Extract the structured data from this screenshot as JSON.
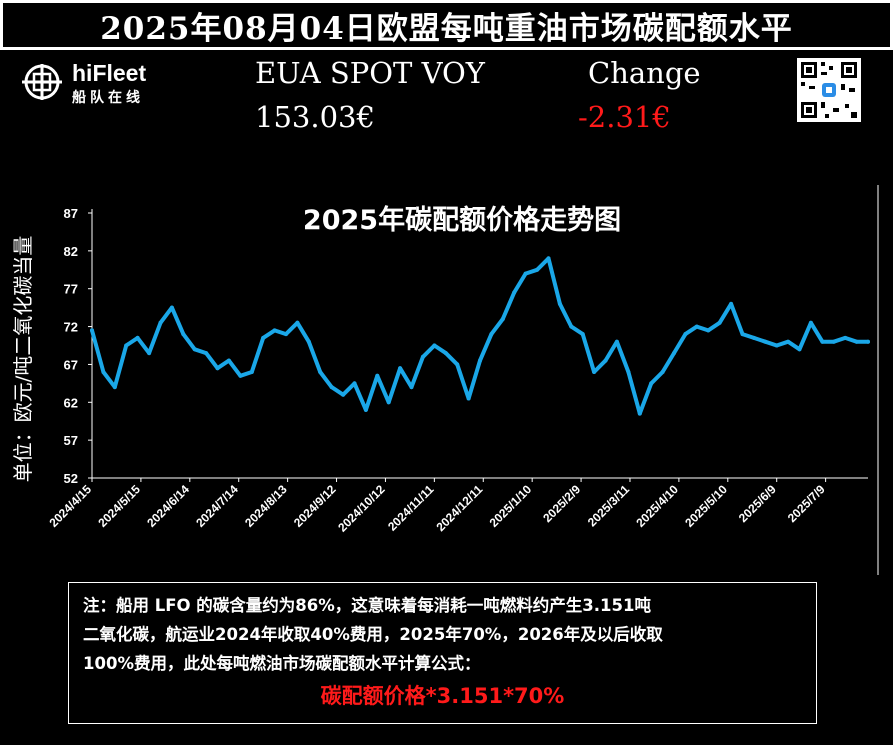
{
  "header": {
    "title": "2025年08月04日欧盟每吨重油市场碳配额水平",
    "product_label": "EUA SPOT VOY",
    "price": "153.03€",
    "change_label": "Change",
    "change_value": "-2.31€"
  },
  "logo": {
    "name": "hiFleet",
    "subtitle": "船队在线"
  },
  "colors": {
    "line": "#1aa7e8",
    "negative": "#ff1a1a",
    "background": "#000000"
  },
  "chart_data": {
    "type": "line",
    "title": "2025年碳配额价格走势图",
    "ylabel": "单位：欧元/吨二氧化碳当量",
    "xlabel": "",
    "ylim": [
      52,
      87
    ],
    "yticks": [
      52,
      57,
      62,
      67,
      72,
      77,
      82,
      87
    ],
    "xtick_labels": [
      "2024/4/15",
      "2024/5/15",
      "2024/6/14",
      "2024/7/14",
      "2024/8/13",
      "2024/9/12",
      "2024/10/12",
      "2024/11/11",
      "2024/12/11",
      "2025/1/10",
      "2025/2/9",
      "2025/3/11",
      "2025/4/10",
      "2025/5/10",
      "2025/6/9",
      "2025/7/9"
    ],
    "x": [
      "2024/4/15",
      "2024/4/22",
      "2024/4/29",
      "2024/5/6",
      "2024/5/13",
      "2024/5/20",
      "2024/5/27",
      "2024/6/3",
      "2024/6/10",
      "2024/6/17",
      "2024/6/24",
      "2024/7/1",
      "2024/7/8",
      "2024/7/15",
      "2024/7/22",
      "2024/7/29",
      "2024/8/5",
      "2024/8/12",
      "2024/8/19",
      "2024/8/26",
      "2024/9/2",
      "2024/9/9",
      "2024/9/16",
      "2024/9/23",
      "2024/9/30",
      "2024/10/7",
      "2024/10/14",
      "2024/10/21",
      "2024/10/28",
      "2024/11/4",
      "2024/11/11",
      "2024/11/18",
      "2024/11/25",
      "2024/12/2",
      "2024/12/9",
      "2024/12/16",
      "2024/12/23",
      "2024/12/30",
      "2025/1/6",
      "2025/1/13",
      "2025/1/20",
      "2025/1/27",
      "2025/2/3",
      "2025/2/10",
      "2025/2/17",
      "2025/2/24",
      "2025/3/3",
      "2025/3/10",
      "2025/3/17",
      "2025/3/24",
      "2025/3/31",
      "2025/4/7",
      "2025/4/14",
      "2025/4/21",
      "2025/4/28",
      "2025/5/5",
      "2025/5/12",
      "2025/5/19",
      "2025/5/26",
      "2025/6/2",
      "2025/6/9",
      "2025/6/16",
      "2025/6/23",
      "2025/6/30",
      "2025/7/7",
      "2025/7/14",
      "2025/7/21",
      "2025/7/28",
      "2025/8/4"
    ],
    "series": [
      {
        "values": [
          71.5,
          66.0,
          64.0,
          69.5,
          70.5,
          68.5,
          72.5,
          74.5,
          71.0,
          69.0,
          68.5,
          66.5,
          67.5,
          65.5,
          66.0,
          70.5,
          71.5,
          71.0,
          72.5,
          70.0,
          66.0,
          64.0,
          63.0,
          64.5,
          61.0,
          65.5,
          62.0,
          66.5,
          64.0,
          68.0,
          69.5,
          68.5,
          67.0,
          62.5,
          67.5,
          71.0,
          73.0,
          76.5,
          79.0,
          79.5,
          81.0,
          75.0,
          72.0,
          71.0,
          66.0,
          67.5,
          70.0,
          66.0,
          60.5,
          64.5,
          66.0,
          68.5,
          71.0,
          72.0,
          71.5,
          72.5,
          75.0,
          71.0,
          70.5,
          70.0,
          69.5,
          70.0,
          69.0,
          72.5,
          70.0,
          70.0,
          70.5,
          70.0,
          70.0
        ]
      }
    ]
  },
  "notes": {
    "lines": [
      "注：船用 LFO 的碳含量约为86%，这意味着每消耗一吨燃料约产生3.151吨",
      "二氧化碳，航运业2024年收取40%费用，2025年70%，2026年及以后收取",
      "100%费用，此处每吨燃油市场碳配额水平计算公式："
    ],
    "formula": "碳配额价格*3.151*70%"
  }
}
